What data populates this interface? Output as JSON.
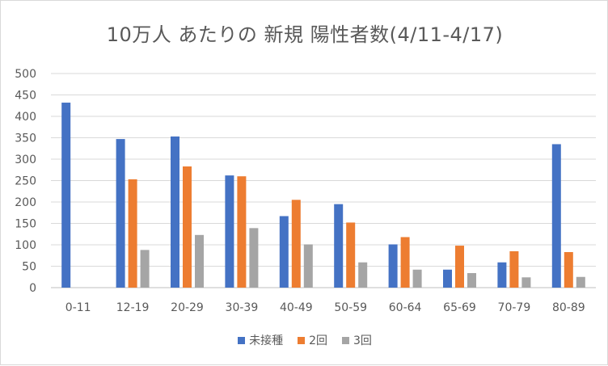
{
  "chart_data": {
    "type": "bar",
    "title": "10万人 あたりの 新規 陽性者数(4/11-4/17)",
    "xlabel": "",
    "ylabel": "",
    "ylim": [
      0,
      500
    ],
    "yticks": [
      0,
      50,
      100,
      150,
      200,
      250,
      300,
      350,
      400,
      450,
      500
    ],
    "grid": "horizontal",
    "legend_position": "bottom",
    "categories": [
      "0-11",
      "12-19",
      "20-29",
      "30-39",
      "40-49",
      "50-59",
      "60-64",
      "65-69",
      "70-79",
      "80-89"
    ],
    "series": [
      {
        "name": "未接種",
        "color": "#4472c4",
        "values": [
          432,
          347,
          353,
          262,
          167,
          195,
          101,
          42,
          59,
          335
        ]
      },
      {
        "name": "2回",
        "color": "#ed7d31",
        "values": [
          0,
          253,
          283,
          260,
          205,
          152,
          118,
          98,
          85,
          83
        ]
      },
      {
        "name": "3回",
        "color": "#a5a5a5",
        "values": [
          0,
          88,
          123,
          139,
          101,
          59,
          42,
          34,
          24,
          25
        ]
      }
    ]
  }
}
